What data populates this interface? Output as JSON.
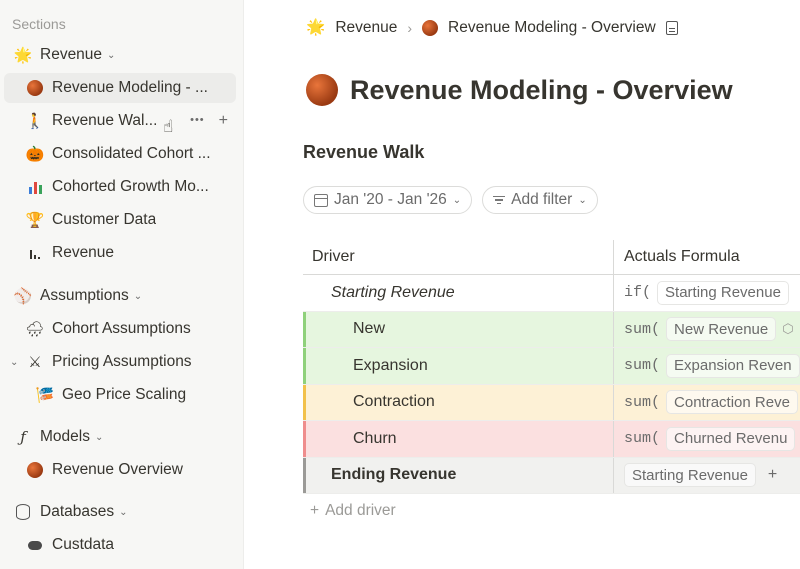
{
  "sidebar": {
    "sections_label": "Sections",
    "revenue_group": "Revenue",
    "revenue_items": [
      {
        "label": "Revenue Modeling - ...",
        "icon": "orb-icon"
      },
      {
        "label": "Revenue Wal...",
        "icon": "walking-person-icon"
      },
      {
        "label": "Consolidated Cohort ...",
        "icon": "pumpkin-icon"
      },
      {
        "label": "Cohorted Growth Mo...",
        "icon": "bar-chart-icon"
      },
      {
        "label": "Customer Data",
        "icon": "trophy-icon"
      },
      {
        "label": "Revenue",
        "icon": "mini-bars-icon"
      }
    ],
    "assumptions_group": "Assumptions",
    "assumptions_items": [
      {
        "label": "Cohort Assumptions",
        "icon": "cloud-rain-icon"
      },
      {
        "label": "Pricing Assumptions",
        "icon": "crossed-swords-icon"
      }
    ],
    "pricing_child": "Geo Price Scaling",
    "models_group": "Models",
    "models_items": [
      {
        "label": "Revenue Overview",
        "icon": "orb-icon"
      }
    ],
    "databases_group": "Databases",
    "databases_items": [
      {
        "label": "Custdata",
        "icon": "cloud-icon"
      }
    ],
    "more_glyph": "•••",
    "add_glyph": "+"
  },
  "breadcrumb": {
    "parent": "Revenue",
    "current": "Revenue Modeling - Overview",
    "separator": "›"
  },
  "page": {
    "title": "Revenue Modeling - Overview",
    "section_title": "Revenue Walk"
  },
  "filters": {
    "date_range": "Jan '20 - Jan '26",
    "add_filter": "Add filter"
  },
  "table": {
    "columns": [
      "Driver",
      "Actuals Formula"
    ],
    "rows": [
      {
        "driver": "Starting Revenue",
        "fn": "if(",
        "ref": "Starting Revenue",
        "style": "italic",
        "color": ""
      },
      {
        "driver": "New",
        "fn": "sum(",
        "ref": "New Revenue",
        "style": "normal",
        "color": "#e6f6df"
      },
      {
        "driver": "Expansion",
        "fn": "sum(",
        "ref": "Expansion Reven",
        "style": "normal",
        "color": "#e6f6df"
      },
      {
        "driver": "Contraction",
        "fn": "sum(",
        "ref": "Contraction Reve",
        "style": "normal",
        "color": "#fdf1d6"
      },
      {
        "driver": "Churn",
        "fn": "sum(",
        "ref": "Churned Revenu",
        "style": "normal",
        "color": "#fbe0e0"
      },
      {
        "driver": "Ending Revenue",
        "fn": "",
        "ref": "Starting Revenue",
        "style": "bold",
        "color": "#f1f1ef"
      }
    ],
    "add_driver": "Add driver"
  },
  "colors": {
    "green_accent": "#8fd17b",
    "yellow_accent": "#f2c14b",
    "red_accent": "#ef8d8d",
    "gray_accent": "#9b9a97"
  }
}
